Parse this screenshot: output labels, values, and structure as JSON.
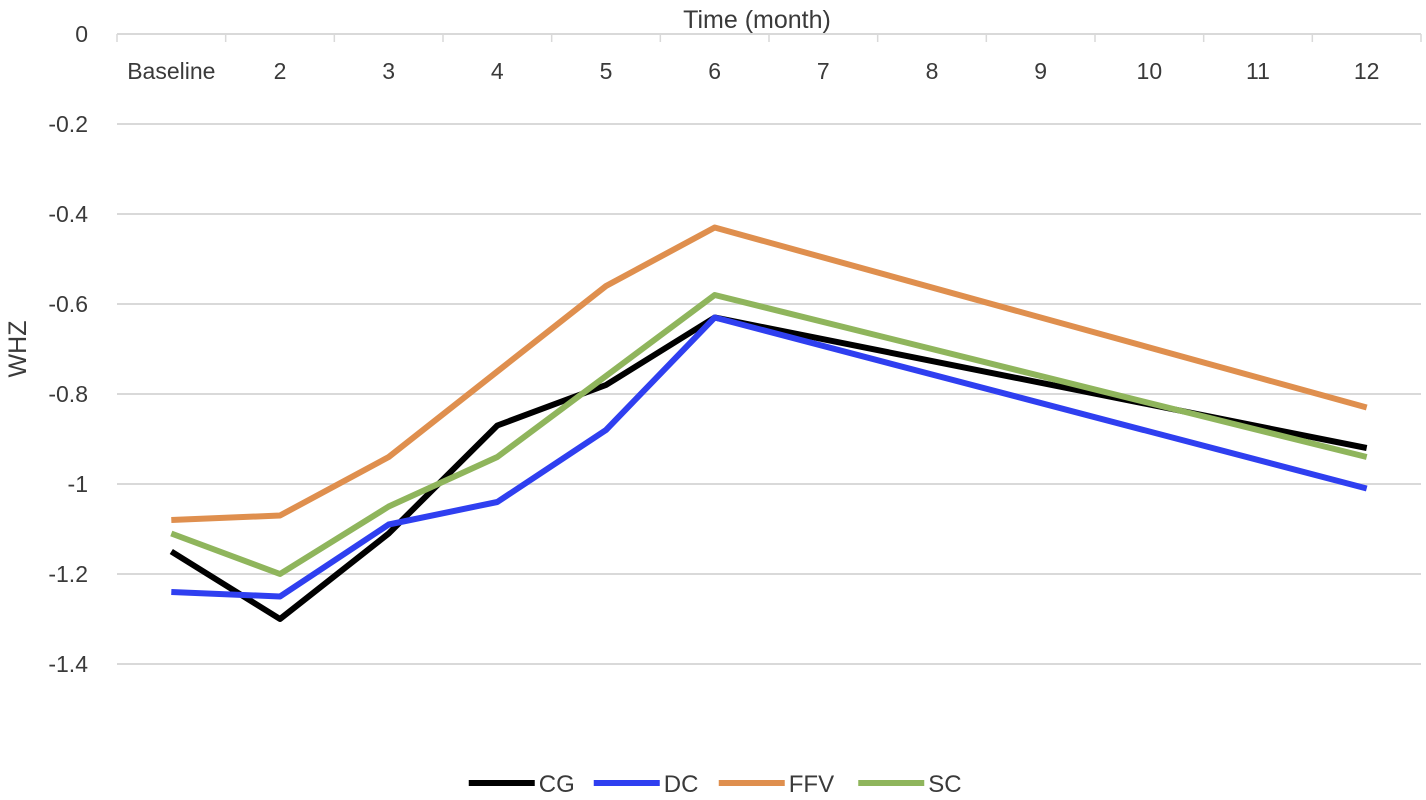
{
  "chart_data": {
    "type": "line",
    "title": "",
    "xlabel": "Time (month)",
    "ylabel": "WHZ",
    "x_axis_position": "top",
    "categories": [
      "Baseline",
      "2",
      "3",
      "4",
      "5",
      "6",
      "7",
      "8",
      "9",
      "10",
      "11",
      "12"
    ],
    "ylim": [
      -1.6,
      0
    ],
    "yticks": [
      0,
      -0.2,
      -0.4,
      -0.6,
      -0.8,
      -1,
      -1.2,
      -1.4
    ],
    "ytick_labels": [
      "0",
      "-0.2",
      "-0.4",
      "-0.6",
      "-0.8",
      "-1",
      "-1.2",
      "-1.4"
    ],
    "grid": true,
    "legend_position": "bottom",
    "series": [
      {
        "name": "CG",
        "color": "#000000",
        "values": [
          -1.15,
          -1.3,
          -1.11,
          -0.87,
          -0.78,
          -0.63,
          null,
          null,
          null,
          null,
          null,
          -0.92
        ]
      },
      {
        "name": "DC",
        "color": "#2f3ff0",
        "values": [
          -1.24,
          -1.25,
          -1.09,
          -1.04,
          -0.88,
          -0.63,
          null,
          null,
          null,
          null,
          null,
          -1.01
        ]
      },
      {
        "name": "FFV",
        "color": "#df8f4e",
        "values": [
          -1.08,
          -1.07,
          -0.94,
          -0.75,
          -0.56,
          -0.43,
          null,
          null,
          null,
          null,
          null,
          -0.83
        ]
      },
      {
        "name": "SC",
        "color": "#8fb55c",
        "values": [
          -1.11,
          -1.2,
          -1.05,
          -0.94,
          -0.76,
          -0.58,
          null,
          null,
          null,
          null,
          null,
          -0.94
        ]
      }
    ]
  }
}
